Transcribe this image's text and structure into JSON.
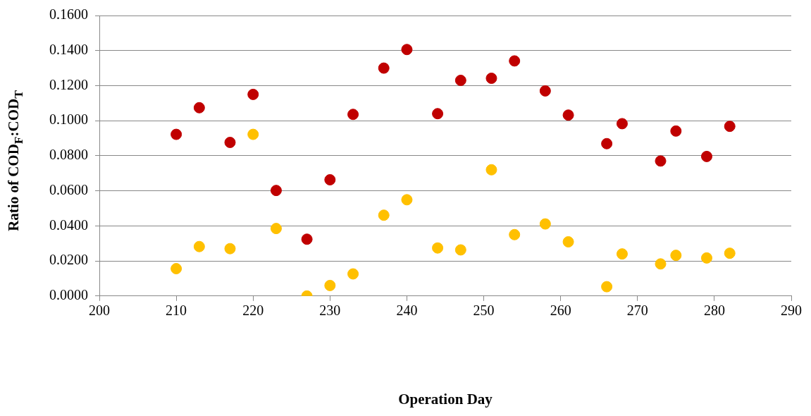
{
  "chart_data": {
    "type": "scatter",
    "xlabel": "Operation Day",
    "ylabel": "Ratio of COD$_{F}$:COD$_{T}$",
    "x": [
      210,
      213,
      217,
      220,
      223,
      227,
      230,
      233,
      237,
      240,
      244,
      247,
      251,
      254,
      258,
      261,
      266,
      268,
      273,
      275,
      279,
      282
    ],
    "series": [
      {
        "color": "#c00000",
        "values": [
          0.0922,
          0.1074,
          0.0876,
          0.115,
          0.0602,
          0.0324,
          0.0663,
          0.1036,
          0.13,
          0.1406,
          0.104,
          0.123,
          0.1242,
          0.1341,
          0.117,
          0.1032,
          0.0869,
          0.0983,
          0.077,
          0.0941,
          0.0796,
          0.0968
        ]
      },
      {
        "color": "#ffc000",
        "values": [
          0.0156,
          0.0282,
          0.027,
          0.0922,
          0.0385,
          0,
          0.006,
          0.0126,
          0.0461,
          0.0549,
          0.0274,
          0.0263,
          0.072,
          0.035,
          0.0411,
          0.0309,
          0.0053,
          0.024,
          0.0183,
          0.0232,
          0.0217,
          0.0244
        ]
      }
    ],
    "xlim": [
      200,
      290
    ],
    "xticks": [
      200,
      210,
      220,
      230,
      240,
      250,
      260,
      270,
      280,
      290
    ],
    "ylim": [
      0,
      0.16
    ],
    "yticks": [
      {
        "value": 0,
        "label": "0.0000"
      },
      {
        "value": 0.02,
        "label": "0.0200"
      },
      {
        "value": 0.04,
        "label": "0.0400"
      },
      {
        "value": 0.06,
        "label": "0.0600"
      },
      {
        "value": 0.08,
        "label": "0.0800"
      },
      {
        "value": 0.1,
        "label": "0.1000"
      },
      {
        "value": 0.12,
        "label": "0.1200"
      },
      {
        "value": 0.14,
        "label": "0.1400"
      },
      {
        "value": 0.16,
        "label": "0.1600"
      }
    ],
    "grid": "y",
    "legend": false,
    "marker": "circle"
  }
}
